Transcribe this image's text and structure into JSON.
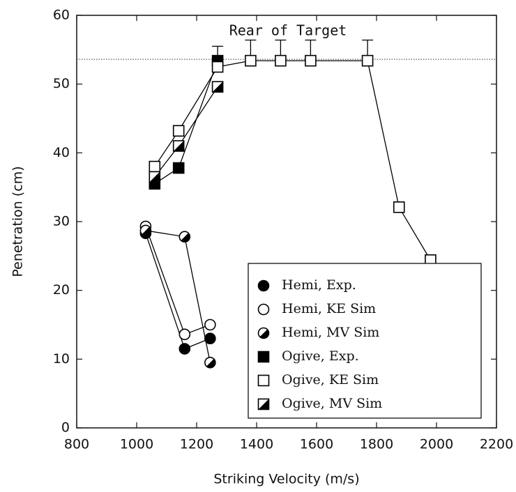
{
  "chart_data": {
    "type": "scatter",
    "xlabel": "Striking Velocity (m/s)",
    "ylabel": "Penetration (cm)",
    "xlim": [
      800,
      2200
    ],
    "xticks": [
      800,
      1000,
      1200,
      1400,
      1600,
      1800,
      2000,
      2200
    ],
    "ylim": [
      0,
      60
    ],
    "yticks": [
      0,
      10,
      20,
      30,
      40,
      50,
      60
    ],
    "reference_line": {
      "value": 53.6,
      "label": "Rear of Target"
    },
    "legend": "lower right",
    "series": [
      {
        "name": "Hemi, Exp.",
        "color": "#000000",
        "marker": "circle",
        "fill": "filled",
        "x": [
          1030,
          1160,
          1245
        ],
        "values": [
          28.3,
          11.5,
          13.0
        ]
      },
      {
        "name": "Hemi, KE Sim",
        "color": "#000000",
        "marker": "circle",
        "fill": "open",
        "x": [
          1030,
          1160,
          1245
        ],
        "values": [
          29.3,
          13.6,
          15.0
        ]
      },
      {
        "name": "Hemi, MV Sim",
        "color": "#000000",
        "marker": "circle",
        "fill": "half",
        "x": [
          1030,
          1160,
          1245
        ],
        "values": [
          28.7,
          27.8,
          9.5
        ]
      },
      {
        "name": "Ogive, Exp.",
        "color": "#000000",
        "marker": "square",
        "fill": "filled",
        "x": [
          1060,
          1140,
          1270
        ],
        "values": [
          35.5,
          37.8,
          53.4
        ]
      },
      {
        "name": "Ogive, KE Sim",
        "color": "#000000",
        "marker": "square",
        "fill": "open",
        "x": [
          1060,
          1140,
          1270,
          1380,
          1480,
          1580,
          1770,
          1875,
          1980
        ],
        "values": [
          38.0,
          43.2,
          52.5,
          53.4,
          53.4,
          53.4,
          53.4,
          32.1,
          24.4
        ],
        "errors": [
          null,
          null,
          3.0,
          3.0,
          3.0,
          3.0,
          3.0,
          null,
          null
        ]
      },
      {
        "name": "Ogive, MV Sim",
        "color": "#000000",
        "marker": "square",
        "fill": "half",
        "x": [
          1060,
          1140,
          1270
        ],
        "values": [
          36.5,
          41.0,
          49.6
        ]
      }
    ]
  }
}
